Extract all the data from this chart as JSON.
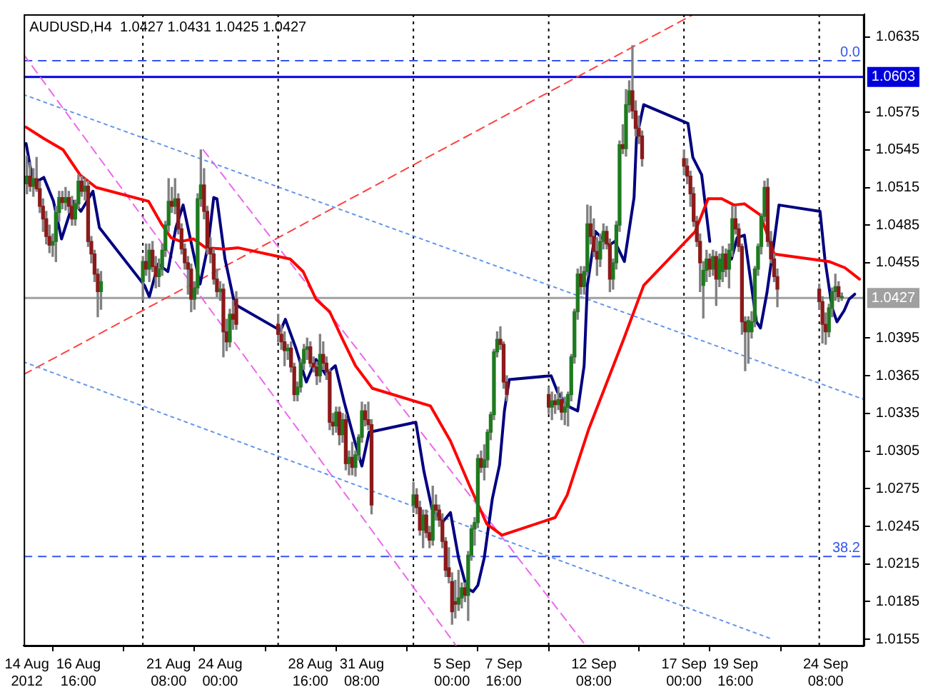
{
  "chart_data": {
    "type": "candlestick",
    "title": "AUDUSD,H4  1.0427 1.0431 1.0425 1.0427",
    "x": [
      "2012-08-14T00:00",
      "2012-08-14T04:00",
      "2012-08-14T08:00",
      "2012-08-14T12:00",
      "2012-08-14T16:00",
      "2012-08-14T20:00",
      "2012-08-15T00:00",
      "2012-08-15T04:00",
      "2012-08-15T08:00",
      "2012-08-15T12:00",
      "2012-08-15T16:00",
      "2012-08-15T20:00",
      "2012-08-16T00:00",
      "2012-08-16T04:00",
      "2012-08-16T08:00",
      "2012-08-16T12:00",
      "2012-08-16T16:00",
      "2012-08-16T20:00",
      "2012-08-17T00:00",
      "2012-08-17T04:00",
      "2012-08-17T08:00",
      "2012-08-17T12:00",
      "2012-08-17T16:00",
      "2012-08-17T20:00",
      "2012-08-20T00:00",
      "2012-08-20T04:00",
      "2012-08-20T08:00",
      "2012-08-20T12:00",
      "2012-08-20T16:00",
      "2012-08-20T20:00",
      "2012-08-21T00:00",
      "2012-08-21T04:00",
      "2012-08-21T08:00",
      "2012-08-21T12:00",
      "2012-08-21T16:00",
      "2012-08-21T20:00",
      "2012-08-22T00:00",
      "2012-08-22T04:00",
      "2012-08-22T08:00",
      "2012-08-22T12:00",
      "2012-08-22T16:00",
      "2012-08-22T20:00",
      "2012-08-23T00:00",
      "2012-08-23T04:00",
      "2012-08-23T08:00",
      "2012-08-23T12:00",
      "2012-08-23T16:00",
      "2012-08-23T20:00",
      "2012-08-24T00:00",
      "2012-08-24T04:00",
      "2012-08-24T08:00",
      "2012-08-24T12:00",
      "2012-08-24T16:00",
      "2012-08-24T20:00",
      "2012-08-27T00:00",
      "2012-08-27T04:00",
      "2012-08-27T08:00",
      "2012-08-27T12:00",
      "2012-08-27T16:00",
      "2012-08-27T20:00",
      "2012-08-28T00:00",
      "2012-08-28T04:00",
      "2012-08-28T08:00",
      "2012-08-28T12:00",
      "2012-08-28T16:00",
      "2012-08-28T20:00",
      "2012-08-29T00:00",
      "2012-08-29T04:00",
      "2012-08-29T08:00",
      "2012-08-29T12:00",
      "2012-08-29T16:00",
      "2012-08-29T20:00",
      "2012-08-30T00:00",
      "2012-08-30T04:00",
      "2012-08-30T08:00",
      "2012-08-30T12:00",
      "2012-08-30T16:00",
      "2012-08-30T20:00",
      "2012-08-31T00:00",
      "2012-08-31T04:00",
      "2012-08-31T08:00",
      "2012-08-31T12:00",
      "2012-08-31T16:00",
      "2012-08-31T20:00",
      "2012-09-03T00:00",
      "2012-09-03T04:00",
      "2012-09-03T08:00",
      "2012-09-03T12:00",
      "2012-09-03T16:00",
      "2012-09-03T20:00",
      "2012-09-04T00:00",
      "2012-09-04T04:00",
      "2012-09-04T08:00",
      "2012-09-04T12:00",
      "2012-09-04T16:00",
      "2012-09-04T20:00",
      "2012-09-05T00:00",
      "2012-09-05T04:00",
      "2012-09-05T08:00",
      "2012-09-05T12:00",
      "2012-09-05T16:00",
      "2012-09-05T20:00",
      "2012-09-06T00:00",
      "2012-09-06T04:00",
      "2012-09-06T08:00",
      "2012-09-06T12:00",
      "2012-09-06T16:00",
      "2012-09-06T20:00",
      "2012-09-07T00:00",
      "2012-09-07T04:00",
      "2012-09-07T08:00",
      "2012-09-07T12:00",
      "2012-09-07T16:00",
      "2012-09-07T20:00",
      "2012-09-10T00:00",
      "2012-09-10T04:00",
      "2012-09-10T08:00",
      "2012-09-10T12:00",
      "2012-09-10T16:00",
      "2012-09-10T20:00",
      "2012-09-11T00:00",
      "2012-09-11T04:00",
      "2012-09-11T08:00",
      "2012-09-11T12:00",
      "2012-09-11T16:00",
      "2012-09-11T20:00",
      "2012-09-12T00:00",
      "2012-09-12T04:00",
      "2012-09-12T08:00",
      "2012-09-12T12:00",
      "2012-09-12T16:00",
      "2012-09-12T20:00",
      "2012-09-13T00:00",
      "2012-09-13T04:00",
      "2012-09-13T08:00",
      "2012-09-13T12:00",
      "2012-09-13T16:00",
      "2012-09-13T20:00",
      "2012-09-14T00:00",
      "2012-09-14T04:00",
      "2012-09-14T08:00",
      "2012-09-14T12:00",
      "2012-09-14T16:00",
      "2012-09-14T20:00",
      "2012-09-17T00:00",
      "2012-09-17T04:00",
      "2012-09-17T08:00",
      "2012-09-17T12:00",
      "2012-09-17T16:00",
      "2012-09-17T20:00",
      "2012-09-18T00:00",
      "2012-09-18T04:00",
      "2012-09-18T08:00",
      "2012-09-18T12:00",
      "2012-09-18T16:00",
      "2012-09-18T20:00",
      "2012-09-19T00:00",
      "2012-09-19T04:00",
      "2012-09-19T08:00",
      "2012-09-19T12:00",
      "2012-09-19T16:00",
      "2012-09-19T20:00",
      "2012-09-20T00:00",
      "2012-09-20T04:00",
      "2012-09-20T08:00",
      "2012-09-20T12:00",
      "2012-09-20T16:00",
      "2012-09-20T20:00",
      "2012-09-21T00:00",
      "2012-09-21T04:00",
      "2012-09-21T08:00",
      "2012-09-21T12:00",
      "2012-09-21T16:00",
      "2012-09-21T20:00",
      "2012-09-24T00:00",
      "2012-09-24T04:00",
      "2012-09-24T08:00",
      "2012-09-24T12:00",
      "2012-09-24T16:00",
      "2012-09-24T20:00",
      "2012-09-25T00:00",
      "2012-09-25T04:00"
    ],
    "ohlc": [
      [
        1.0518,
        1.054,
        1.051,
        1.0524
      ],
      [
        1.0524,
        1.0535,
        1.0512,
        1.0516
      ],
      [
        1.0516,
        1.053,
        1.0508,
        1.0522
      ],
      [
        1.0522,
        1.0539,
        1.0512,
        1.0514
      ],
      [
        1.0514,
        1.052,
        1.0495,
        1.05
      ],
      [
        1.05,
        1.0506,
        1.048,
        1.049
      ],
      [
        1.049,
        1.0496,
        1.047,
        1.0476
      ],
      [
        1.0476,
        1.0485,
        1.0463,
        1.0469
      ],
      [
        1.0469,
        1.0478,
        1.046,
        1.0472
      ],
      [
        1.0472,
        1.05,
        1.0456,
        1.0495
      ],
      [
        1.0495,
        1.0512,
        1.0488,
        1.0507
      ],
      [
        1.0507,
        1.0512,
        1.0498,
        1.0503
      ],
      [
        1.0503,
        1.0515,
        1.0497,
        1.0507
      ],
      [
        1.0507,
        1.0512,
        1.0495,
        1.05
      ],
      [
        1.05,
        1.0508,
        1.0485,
        1.049
      ],
      [
        1.049,
        1.0505,
        1.0485,
        1.0502
      ],
      [
        1.0502,
        1.0525,
        1.0498,
        1.052
      ],
      [
        1.052,
        1.0524,
        1.0508,
        1.0512
      ],
      [
        1.0512,
        1.0522,
        1.0505,
        1.0516
      ],
      [
        1.0516,
        1.052,
        1.0468,
        1.0472
      ],
      [
        1.0472,
        1.0476,
        1.0455,
        1.0462
      ],
      [
        1.0462,
        1.0465,
        1.044,
        1.0446
      ],
      [
        1.0446,
        1.045,
        1.0412,
        1.0432
      ],
      [
        1.0432,
        1.0448,
        1.0418,
        1.044
      ],
      [
        1.044,
        1.046,
        1.0425,
        1.0456
      ],
      [
        1.0456,
        1.047,
        1.0445,
        1.045
      ],
      [
        1.045,
        1.047,
        1.044,
        1.0465
      ],
      [
        1.0465,
        1.0472,
        1.0448,
        1.0452
      ],
      [
        1.0452,
        1.046,
        1.0435,
        1.0444
      ],
      [
        1.0444,
        1.0458,
        1.0436,
        1.045
      ],
      [
        1.045,
        1.047,
        1.0445,
        1.0465
      ],
      [
        1.0465,
        1.0488,
        1.046,
        1.0485
      ],
      [
        1.0485,
        1.0522,
        1.048,
        1.0504
      ],
      [
        1.0504,
        1.0515,
        1.0495,
        1.05
      ],
      [
        1.05,
        1.0522,
        1.0494,
        1.0506
      ],
      [
        1.0506,
        1.051,
        1.0478,
        1.0482
      ],
      [
        1.0482,
        1.0486,
        1.0462,
        1.0466
      ],
      [
        1.0466,
        1.047,
        1.045,
        1.0455
      ],
      [
        1.0455,
        1.046,
        1.043,
        1.045
      ],
      [
        1.045,
        1.0454,
        1.0416,
        1.0426
      ],
      [
        1.0426,
        1.044,
        1.0418,
        1.0435
      ],
      [
        1.0435,
        1.051,
        1.043,
        1.0506
      ],
      [
        1.0506,
        1.0545,
        1.05,
        1.0517
      ],
      [
        1.0517,
        1.053,
        1.049,
        1.0496
      ],
      [
        1.0496,
        1.05,
        1.0462,
        1.0467
      ],
      [
        1.0467,
        1.0475,
        1.0455,
        1.0462
      ],
      [
        1.0462,
        1.0466,
        1.0438,
        1.0442
      ],
      [
        1.0442,
        1.045,
        1.0428,
        1.0432
      ],
      [
        1.0432,
        1.044,
        1.0425,
        1.0434
      ],
      [
        1.0434,
        1.0438,
        1.038,
        1.04
      ],
      [
        1.04,
        1.041,
        1.0385,
        1.0392
      ],
      [
        1.0392,
        1.0418,
        1.0388,
        1.0414
      ],
      [
        1.0414,
        1.0425,
        1.0402,
        1.041
      ],
      [
        1.0426,
        1.0432,
        1.0402,
        1.0406
      ],
      [
        1.0406,
        1.0414,
        1.0392,
        1.0398
      ],
      [
        1.0398,
        1.0405,
        1.0386,
        1.0392
      ],
      [
        1.0392,
        1.04,
        1.0373,
        1.0385
      ],
      [
        1.0385,
        1.039,
        1.0378,
        1.0387
      ],
      [
        1.0387,
        1.0392,
        1.0368,
        1.0372
      ],
      [
        1.0372,
        1.0375,
        1.0345,
        1.035
      ],
      [
        1.035,
        1.036,
        1.0345,
        1.0356
      ],
      [
        1.0356,
        1.0378,
        1.0352,
        1.0375
      ],
      [
        1.0375,
        1.039,
        1.037,
        1.0386
      ],
      [
        1.0386,
        1.0395,
        1.0378,
        1.0388
      ],
      [
        1.0388,
        1.0392,
        1.0372,
        1.0375
      ],
      [
        1.0375,
        1.038,
        1.0368,
        1.0372
      ],
      [
        1.0372,
        1.0376,
        1.0358,
        1.0365
      ],
      [
        1.0365,
        1.0398,
        1.036,
        1.0382
      ],
      [
        1.0382,
        1.0392,
        1.037,
        1.0375
      ],
      [
        1.0375,
        1.038,
        1.0362,
        1.0368
      ],
      [
        1.0368,
        1.037,
        1.0322,
        1.0328
      ],
      [
        1.0328,
        1.0335,
        1.0318,
        1.0325
      ],
      [
        1.0325,
        1.034,
        1.032,
        1.0336
      ],
      [
        1.0336,
        1.034,
        1.031,
        1.0318
      ],
      [
        1.0318,
        1.0335,
        1.0312,
        1.033
      ],
      [
        1.033,
        1.0334,
        1.029,
        1.0295
      ],
      [
        1.0295,
        1.0305,
        1.0286,
        1.03
      ],
      [
        1.03,
        1.0312,
        1.0286,
        1.0292
      ],
      [
        1.0292,
        1.0305,
        1.0285,
        1.0302
      ],
      [
        1.0302,
        1.0318,
        1.0298,
        1.0316
      ],
      [
        1.0316,
        1.0344,
        1.0312,
        1.0337
      ],
      [
        1.0337,
        1.0342,
        1.0325,
        1.033
      ],
      [
        1.033,
        1.0344,
        1.0322,
        1.0326
      ],
      [
        1.0326,
        1.033,
        1.0255,
        1.0262
      ],
      [
        1.0262,
        1.028,
        1.0256,
        1.027
      ],
      [
        1.027,
        1.0275,
        1.0255,
        1.026
      ],
      [
        1.026,
        1.0265,
        1.0238,
        1.0242
      ],
      [
        1.0242,
        1.0258,
        1.0228,
        1.0254
      ],
      [
        1.0254,
        1.0258,
        1.0236,
        1.024
      ],
      [
        1.024,
        1.0245,
        1.0228,
        1.0234
      ],
      [
        1.0234,
        1.0277,
        1.023,
        1.0262
      ],
      [
        1.0262,
        1.027,
        1.025,
        1.0258
      ],
      [
        1.0258,
        1.0262,
        1.0245,
        1.025
      ],
      [
        1.025,
        1.0255,
        1.0228,
        1.0233
      ],
      [
        1.0233,
        1.0236,
        1.0205,
        1.021
      ],
      [
        1.0212,
        1.0228,
        1.02,
        1.0205
      ],
      [
        1.0201,
        1.0208,
        1.0167,
        1.0177
      ],
      [
        1.0185,
        1.0202,
        1.0172,
        1.0183
      ],
      [
        1.0183,
        1.021,
        1.0178,
        1.0188
      ],
      [
        1.0188,
        1.02,
        1.018,
        1.0196
      ],
      [
        1.0196,
        1.02,
        1.0185,
        1.019
      ],
      [
        1.019,
        1.0225,
        1.017,
        1.0222
      ],
      [
        1.0222,
        1.0246,
        1.0218,
        1.0243
      ],
      [
        1.0243,
        1.0252,
        1.023,
        1.0248
      ],
      [
        1.0248,
        1.0302,
        1.0244,
        1.0299
      ],
      [
        1.0299,
        1.0305,
        1.0288,
        1.0292
      ],
      [
        1.0292,
        1.031,
        1.0282,
        1.0298
      ],
      [
        1.0298,
        1.0322,
        1.0292,
        1.032
      ],
      [
        1.032,
        1.0336,
        1.0314,
        1.0334
      ],
      [
        1.0334,
        1.0386,
        1.033,
        1.0384
      ],
      [
        1.0384,
        1.04,
        1.038,
        1.0394
      ],
      [
        1.0394,
        1.0404,
        1.0386,
        1.039
      ],
      [
        1.039,
        1.0392,
        1.0355,
        1.036
      ],
      [
        1.036,
        1.0365,
        1.0345,
        1.035
      ],
      [
        1.035,
        1.0356,
        1.0335,
        1.034
      ],
      [
        1.034,
        1.0352,
        1.033,
        1.0345
      ],
      [
        1.0345,
        1.035,
        1.0335,
        1.0342
      ],
      [
        1.0342,
        1.0356,
        1.0338,
        1.0346
      ],
      [
        1.0346,
        1.0352,
        1.033,
        1.0336
      ],
      [
        1.0336,
        1.0348,
        1.0326,
        1.034
      ],
      [
        1.034,
        1.0352,
        1.0325,
        1.035
      ],
      [
        1.035,
        1.0382,
        1.0345,
        1.038
      ],
      [
        1.038,
        1.0418,
        1.0375,
        1.0416
      ],
      [
        1.0416,
        1.045,
        1.041,
        1.0446
      ],
      [
        1.0446,
        1.0452,
        1.043,
        1.0436
      ],
      [
        1.0436,
        1.0452,
        1.043,
        1.0448
      ],
      [
        1.0448,
        1.0501,
        1.0445,
        1.0486
      ],
      [
        1.0486,
        1.05,
        1.047,
        1.0476
      ],
      [
        1.0476,
        1.049,
        1.046,
        1.0464
      ],
      [
        1.0464,
        1.0475,
        1.0445,
        1.0458
      ],
      [
        1.0458,
        1.0478,
        1.0452,
        1.0472
      ],
      [
        1.0472,
        1.0486,
        1.0466,
        1.048
      ],
      [
        1.048,
        1.0484,
        1.0466,
        1.047
      ],
      [
        1.047,
        1.0474,
        1.0432,
        1.0442
      ],
      [
        1.0442,
        1.0458,
        1.0434,
        1.0455
      ],
      [
        1.0455,
        1.0488,
        1.045,
        1.0485
      ],
      [
        1.0485,
        1.0552,
        1.048,
        1.0549
      ],
      [
        1.0549,
        1.0565,
        1.0542,
        1.0546
      ],
      [
        1.0546,
        1.0593,
        1.054,
        1.0581
      ],
      [
        1.0581,
        1.06,
        1.0575,
        1.0592
      ],
      [
        1.0592,
        1.0628,
        1.057,
        1.0576
      ],
      [
        1.0576,
        1.0584,
        1.0556,
        1.0562
      ],
      [
        1.0562,
        1.0572,
        1.055,
        1.0556
      ],
      [
        1.0556,
        1.056,
        1.0532,
        1.0538
      ],
      [
        1.0538,
        1.0545,
        1.0525,
        1.0532
      ],
      [
        1.0532,
        1.0538,
        1.0518,
        1.0524
      ],
      [
        1.0524,
        1.0528,
        1.05,
        1.051
      ],
      [
        1.051,
        1.0515,
        1.0484,
        1.0488
      ],
      [
        1.0488,
        1.0492,
        1.0468,
        1.0472
      ],
      [
        1.0472,
        1.0478,
        1.0432,
        1.0455
      ],
      [
        1.0437,
        1.0456,
        1.0411,
        1.0449
      ],
      [
        1.0449,
        1.0465,
        1.044,
        1.0458
      ],
      [
        1.0458,
        1.0462,
        1.0444,
        1.045
      ],
      [
        1.045,
        1.0465,
        1.0445,
        1.046
      ],
      [
        1.046,
        1.0464,
        1.0421,
        1.0442
      ],
      [
        1.0442,
        1.0462,
        1.0436,
        1.0458
      ],
      [
        1.0448,
        1.0468,
        1.044,
        1.0462
      ],
      [
        1.0462,
        1.0466,
        1.0444,
        1.045
      ],
      [
        1.045,
        1.047,
        1.0435,
        1.0465
      ],
      [
        1.0465,
        1.05,
        1.046,
        1.049
      ],
      [
        1.049,
        1.05,
        1.0478,
        1.0482
      ],
      [
        1.0482,
        1.0486,
        1.0464,
        1.0468
      ],
      [
        1.0468,
        1.047,
        1.0398,
        1.0408
      ],
      [
        1.0408,
        1.0412,
        1.0369,
        1.04
      ],
      [
        1.04,
        1.0412,
        1.0375,
        1.0409
      ],
      [
        1.04,
        1.0416,
        1.0395,
        1.0408
      ],
      [
        1.0408,
        1.0452,
        1.0404,
        1.045
      ],
      [
        1.045,
        1.047,
        1.0445,
        1.0468
      ],
      [
        1.0468,
        1.0494,
        1.0462,
        1.0492
      ],
      [
        1.0492,
        1.052,
        1.0488,
        1.0515
      ],
      [
        1.0515,
        1.0522,
        1.0468,
        1.0472
      ],
      [
        1.0472,
        1.048,
        1.0455,
        1.0458
      ],
      [
        1.0458,
        1.0462,
        1.044,
        1.0444
      ],
      [
        1.0444,
        1.045,
        1.042,
        1.0434
      ],
      [
        1.0434,
        1.0438,
        1.0418,
        1.0424
      ],
      [
        1.0424,
        1.0428,
        1.0391,
        1.0406
      ],
      [
        1.0406,
        1.0415,
        1.039,
        1.04
      ],
      [
        1.04,
        1.0422,
        1.0396,
        1.0419
      ],
      [
        1.0419,
        1.0435,
        1.0412,
        1.0432
      ],
      [
        1.0432,
        1.0446,
        1.0425,
        1.0436
      ],
      [
        1.0436,
        1.044,
        1.0424,
        1.0428
      ],
      [
        1.0427,
        1.0431,
        1.0425,
        1.0427
      ]
    ],
    "series": [
      {
        "type": "line",
        "color": "#ff0000",
        "x": [
          "2012-08-13T23:00",
          "2012-08-14T21:00",
          "2012-08-15T21:00",
          "2012-08-16T18:00",
          "2012-08-17T14:00",
          "2012-08-20T07:00",
          "2012-08-20T23:00",
          "2012-08-21T11:00",
          "2012-08-21T23:00",
          "2012-08-22T15:00",
          "2012-08-23T06:00",
          "2012-08-24T06:00",
          "2012-08-24T22:00",
          "2012-08-27T15:00",
          "2012-08-28T07:00",
          "2012-08-28T23:00",
          "2012-08-29T16:00",
          "2012-08-30T08:00",
          "2012-08-31T00:00",
          "2012-08-31T21:00",
          "2012-09-03T21:00",
          "2012-09-04T22:00",
          "2012-09-05T22:00",
          "2012-09-06T19:00",
          "2012-09-07T14:00",
          "2012-09-10T08:00",
          "2012-09-10T23:00",
          "2012-09-12T02:00",
          "2012-09-13T21:00",
          "2012-09-14T22:00",
          "2012-09-17T14:00",
          "2012-09-18T06:00",
          "2012-09-18T23:00",
          "2012-09-19T14:00",
          "2012-09-20T03:00",
          "2012-09-20T23:00",
          "2012-09-21T16:00",
          "2012-09-24T12:00",
          "2012-09-25T08:00",
          "2012-09-26T02:00"
        ],
        "values": [
          1.0563,
          1.0554,
          1.0545,
          1.0525,
          1.0515,
          1.0504,
          1.0486,
          1.0475,
          1.0472,
          1.0474,
          1.0467,
          1.0466,
          1.0467,
          1.0458,
          1.0448,
          1.0426,
          1.0416,
          1.0394,
          1.0373,
          1.0355,
          1.0341,
          1.0313,
          1.0277,
          1.0247,
          1.0238,
          1.0252,
          1.027,
          1.0323,
          1.0394,
          1.0437,
          1.048,
          1.0506,
          1.0506,
          1.0501,
          1.0502,
          1.0493,
          1.0462,
          1.0456,
          1.0451,
          1.0442
        ]
      },
      {
        "type": "line",
        "color": "#000080",
        "x": [
          "2012-08-13T23:00",
          "2012-08-14T08:00",
          "2012-08-14T21:00",
          "2012-08-15T09:00",
          "2012-08-15T19:00",
          "2012-08-16T10:00",
          "2012-08-16T19:00",
          "2012-08-17T10:00",
          "2012-08-17T18:00",
          "2012-08-20T02:00",
          "2012-08-20T08:00",
          "2012-08-20T19:00",
          "2012-08-21T07:00",
          "2012-08-21T17:00",
          "2012-08-22T02:00",
          "2012-08-22T15:00",
          "2012-08-22T23:00",
          "2012-08-23T09:00",
          "2012-08-23T16:00",
          "2012-08-23T20:00",
          "2012-08-24T06:00",
          "2012-08-24T18:00",
          "2012-08-27T03:00",
          "2012-08-27T09:00",
          "2012-08-27T22:00",
          "2012-08-28T11:00",
          "2012-08-28T23:00",
          "2012-08-29T11:00",
          "2012-08-29T23:00",
          "2012-08-30T10:00",
          "2012-08-30T23:00",
          "2012-08-31T08:00",
          "2012-08-31T17:00",
          "2012-09-03T03:00",
          "2012-09-03T13:00",
          "2012-09-03T23:00",
          "2012-09-04T13:00",
          "2012-09-04T22:00",
          "2012-09-05T08:00",
          "2012-09-05T18:00",
          "2012-09-06T02:00",
          "2012-09-06T08:00",
          "2012-09-06T16:00",
          "2012-09-07T02:00",
          "2012-09-07T11:00",
          "2012-09-07T17:00",
          "2012-09-07T23:00",
          "2012-09-10T03:00",
          "2012-09-10T11:00",
          "2012-09-10T23:00",
          "2012-09-11T12:00",
          "2012-09-11T20:00",
          "2012-09-12T00:00",
          "2012-09-12T10:00",
          "2012-09-13T03:00",
          "2012-09-13T10:00",
          "2012-09-13T22:00",
          "2012-09-14T10:00",
          "2012-09-14T13:00",
          "2012-09-14T22:00",
          "2012-09-17T05:00",
          "2012-09-17T11:00",
          "2012-09-17T22:00",
          "2012-09-18T08:00",
          "2012-09-18T16:00",
          "2012-09-19T02:00",
          "2012-09-19T11:00",
          "2012-09-19T18:00",
          "2012-09-20T03:00",
          "2012-09-20T11:00",
          "2012-09-20T18:00",
          "2012-09-20T23:00",
          "2012-09-21T07:00",
          "2012-09-21T16:00",
          "2012-09-21T22:00",
          "2012-09-24T01:00",
          "2012-09-24T07:00",
          "2012-09-24T16:00",
          "2012-09-24T22:00",
          "2012-09-25T07:00",
          "2012-09-25T13:00",
          "2012-09-25T20:00"
        ],
        "values": [
          1.055,
          1.0518,
          1.0523,
          1.0504,
          1.0474,
          1.0504,
          1.0496,
          1.0512,
          1.0483,
          1.0437,
          1.0428,
          1.0454,
          1.0448,
          1.0483,
          1.0501,
          1.0462,
          1.0438,
          1.0469,
          1.0507,
          1.0506,
          1.0458,
          1.0422,
          1.0401,
          1.041,
          1.0387,
          1.036,
          1.0378,
          1.0366,
          1.0373,
          1.0344,
          1.0313,
          1.0293,
          1.032,
          1.0328,
          1.0289,
          1.0259,
          1.0249,
          1.0256,
          1.022,
          1.0196,
          1.0193,
          1.0198,
          1.022,
          1.0267,
          1.0294,
          1.0337,
          1.0362,
          1.0365,
          1.0352,
          1.0341,
          1.0337,
          1.0373,
          1.0437,
          1.048,
          1.0469,
          1.0472,
          1.0456,
          1.0507,
          1.0554,
          1.0581,
          1.0566,
          1.0539,
          1.0525,
          1.0472,
          null,
          null,
          1.0458,
          1.0475,
          1.0477,
          1.044,
          1.0408,
          1.0403,
          1.0431,
          1.0472,
          1.0501,
          1.0496,
          1.0458,
          1.0419,
          1.0408,
          1.0417,
          1.0426,
          1.043
        ]
      },
      {
        "type": "line",
        "color": "#6495ed",
        "line_style": "dotted",
        "x": [
          "2012-08-13T20:00",
          "2012-09-26T08:00"
        ],
        "values": [
          1.0589,
          1.0346
        ]
      },
      {
        "type": "line",
        "color": "#6495ed",
        "line_style": "dotted",
        "x": [
          "2012-08-13T20:00",
          "2012-09-21T14:00"
        ],
        "values": [
          1.0376,
          1.0155
        ]
      },
      {
        "type": "line",
        "color": "#ff4040",
        "line_style": "dashed",
        "x": [
          "2012-08-13T20:00",
          "2012-09-17T12:00"
        ],
        "values": [
          1.0366,
          1.0653
        ]
      },
      {
        "type": "line",
        "color": "#ee66ee",
        "line_style": "dashed",
        "x": [
          "2012-08-13T20:00",
          "2012-09-05T05:00"
        ],
        "values": [
          1.0621,
          1.015
        ]
      },
      {
        "type": "line",
        "color": "#ee66ee",
        "line_style": "dashed",
        "x": [
          "2012-08-23T03:00",
          "2012-09-11T22:00"
        ],
        "values": [
          1.0545,
          1.015
        ]
      }
    ],
    "xlim": [
      "2012-08-13T20:00",
      "2012-09-26T08:00"
    ],
    "xticks": [
      {
        "value": "2012-08-14",
        "label": "14 Aug 2012"
      },
      {
        "value": "2012-08-16T16:00",
        "label": "16 Aug 16:00"
      },
      {
        "value": "2012-08-21T08:00",
        "label": "21 Aug 08:00"
      },
      {
        "value": "2012-08-24",
        "label": "24 Aug 00:00"
      },
      {
        "value": "2012-08-28T16:00",
        "label": "28 Aug 16:00"
      },
      {
        "value": "2012-08-31T08:00",
        "label": "31 Aug 08:00"
      },
      {
        "value": "2012-09-05",
        "label": "5 Sep 00:00"
      },
      {
        "value": "2012-09-07T16:00",
        "label": "7 Sep 16:00"
      },
      {
        "value": "2012-09-12T08:00",
        "label": "12 Sep 08:00"
      },
      {
        "value": "2012-09-17",
        "label": "17 Sep 00:00"
      },
      {
        "value": "2012-09-19T16:00",
        "label": "19 Sep 16:00"
      },
      {
        "value": "2012-09-24T08:00",
        "label": "24 Sep 08:00"
      }
    ],
    "ylim": [
      1.015,
      1.0653
    ],
    "yticks": [
      1.0155,
      1.0185,
      1.0215,
      1.0245,
      1.0275,
      1.0305,
      1.0335,
      1.0365,
      1.0395,
      1.0455,
      1.0485,
      1.0515,
      1.0545,
      1.0575,
      1.0635
    ],
    "ref_lines": [
      {
        "axis": "x",
        "value": "2012-08-20",
        "color": "#000000",
        "line_style": "dotted"
      },
      {
        "axis": "x",
        "value": "2012-08-27",
        "color": "#000000",
        "line_style": "dotted"
      },
      {
        "axis": "x",
        "value": "2012-09-03",
        "color": "#000000",
        "line_style": "dotted"
      },
      {
        "axis": "x",
        "value": "2012-09-10",
        "color": "#000000",
        "line_style": "dotted"
      },
      {
        "axis": "x",
        "value": "2012-09-17",
        "color": "#000000",
        "line_style": "dotted"
      },
      {
        "axis": "x",
        "value": "2012-09-24",
        "color": "#000000",
        "line_style": "dotted"
      },
      {
        "axis": "y",
        "value": 1.0616,
        "color": "#3355ee",
        "line_style": "dashed"
      },
      {
        "axis": "y",
        "value": 1.0603,
        "label": "1.0603",
        "color": "#0000dd",
        "line_style": "solid"
      },
      {
        "axis": "y",
        "value": 1.0221,
        "color": "#3355ee",
        "line_style": "dashed"
      },
      {
        "axis": "y",
        "value": 1.0427,
        "label": "1.0427",
        "color": "#a0a0a0",
        "line_style": "solid"
      }
    ],
    "annotations": [
      {
        "text": "0.0",
        "x": "2012-09-26T08:00",
        "y": 1.0616
      },
      {
        "text": "38.2",
        "x": "2012-09-26T08:00",
        "y": 1.0221
      }
    ]
  }
}
